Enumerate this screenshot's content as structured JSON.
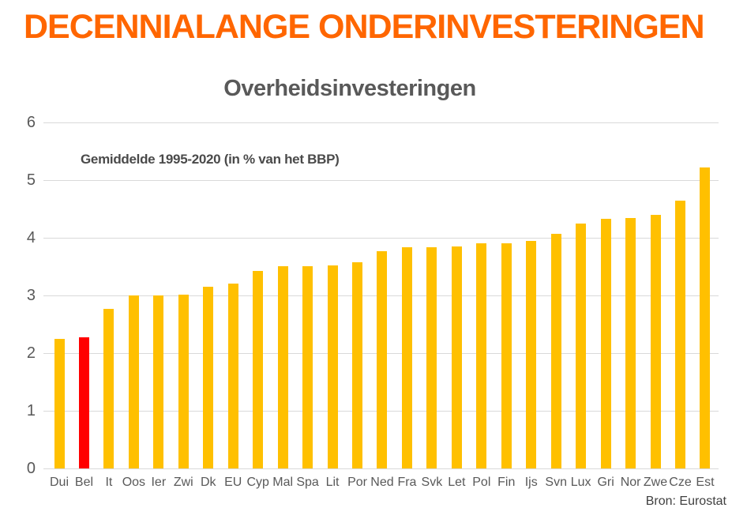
{
  "header": {
    "title": "DECENNIALANGE ONDERINVESTERINGEN"
  },
  "colors": {
    "title_accent": "#FF6600",
    "bar_default": "#FFC000",
    "bar_highlight": "#FF0000",
    "gridline": "#D9D9D9",
    "text_gray": "#595959"
  },
  "chart_data": {
    "type": "bar",
    "title": "Overheidsinvesteringen",
    "annotation": "Gemiddelde 1995-2020 (in % van het BBP)",
    "source": "Bron: Eurostat",
    "categories": [
      "Dui",
      "Bel",
      "It",
      "Oos",
      "Ier",
      "Zwi",
      "Dk",
      "EU",
      "Cyp",
      "Mal",
      "Spa",
      "Lit",
      "Por",
      "Ned",
      "Fra",
      "Svk",
      "Let",
      "Pol",
      "Fin",
      "Ijs",
      "Svn",
      "Lux",
      "Gri",
      "Nor",
      "Zwe",
      "Cze",
      "Est"
    ],
    "values": [
      2.25,
      2.28,
      2.77,
      3.0,
      3.0,
      3.01,
      3.15,
      3.2,
      3.42,
      3.51,
      3.51,
      3.52,
      3.58,
      3.77,
      3.83,
      3.84,
      3.85,
      3.91,
      3.91,
      3.94,
      4.07,
      4.25,
      4.33,
      4.34,
      4.4,
      4.65,
      5.22
    ],
    "bar_color": "#FFC000",
    "highlight": {
      "category": "Bel",
      "color": "#FF0000"
    },
    "ylim": [
      0,
      6
    ],
    "ytick_step": 1,
    "yticks": [
      0,
      1,
      2,
      3,
      4,
      5,
      6
    ],
    "grid": true,
    "legend": false,
    "xlabel": "",
    "ylabel": ""
  }
}
